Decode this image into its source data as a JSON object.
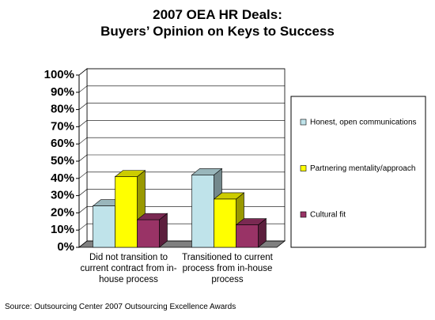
{
  "chart_data": {
    "type": "bar3d",
    "title": "2007 OEA HR Deals:\nBuyers’ Opinion on Keys to Success",
    "categories": [
      "Did not transition to current contract from in-house process",
      "Transitioned to current process from in-house process"
    ],
    "series": [
      {
        "name": "Honest, open communications",
        "color": "#bfe3ea",
        "values": [
          24,
          42
        ]
      },
      {
        "name": "Partnering mentality/approach",
        "color": "#ffff00",
        "values": [
          41,
          28
        ]
      },
      {
        "name": "Cultural fit",
        "color": "#993366",
        "values": [
          16,
          13
        ]
      }
    ],
    "ylim": [
      0,
      100
    ],
    "yticks": [
      {
        "value": 0,
        "label": "0%"
      },
      {
        "value": 10,
        "label": "10%"
      },
      {
        "value": 20,
        "label": "20%"
      },
      {
        "value": 30,
        "label": "30%"
      },
      {
        "value": 40,
        "label": "40%"
      },
      {
        "value": 50,
        "label": "50%"
      },
      {
        "value": 60,
        "label": "60%"
      },
      {
        "value": 70,
        "label": "70%"
      },
      {
        "value": 80,
        "label": "80%"
      },
      {
        "value": 90,
        "label": "90%"
      },
      {
        "value": 100,
        "label": "100%"
      }
    ],
    "grid": true,
    "legend": "right",
    "source": "Source: Outsourcing Center 2007 Outsourcing Excellence Awards"
  }
}
